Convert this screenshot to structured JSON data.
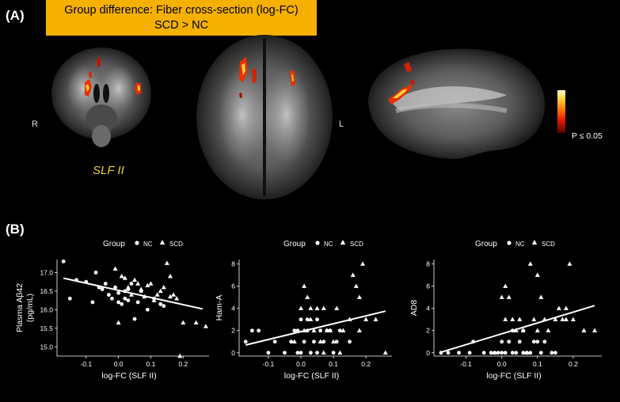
{
  "panel_a": {
    "label": "(A)",
    "title_line1": "Group difference: Fiber cross-section (log-FC)",
    "title_line2": "SCD > NC",
    "left_side": "R",
    "right_side": "L",
    "tract": "SLF II",
    "colorbar_label": "P ≤ 0.05"
  },
  "panel_b": {
    "label": "(B)",
    "legend_title": "Group",
    "legend_nc": "NC",
    "legend_scd": "SCD"
  },
  "chart_data": [
    {
      "type": "scatter",
      "xlabel": "log-FC (SLF II)",
      "ylabel": "Plasma Aβ42\n(pg/mL)",
      "xlim": [
        -0.19,
        0.28
      ],
      "ylim": [
        14.75,
        17.35
      ],
      "xticks": [
        -0.1,
        0.0,
        0.1,
        0.2
      ],
      "xtick_labels": [
        "-0.1",
        "0.0",
        "0.1",
        "0.2"
      ],
      "yticks": [
        15.0,
        15.5,
        16.0,
        16.5,
        17.0
      ],
      "ytick_labels": [
        "15.0",
        "15.5",
        "16.0",
        "16.5",
        "17.0"
      ],
      "fit": [
        [
          -0.17,
          16.85
        ],
        [
          0.26,
          16.02
        ]
      ],
      "series": [
        {
          "name": "NC",
          "marker": "circle",
          "points": [
            [
              -0.17,
              17.3
            ],
            [
              -0.15,
              16.3
            ],
            [
              -0.13,
              16.8
            ],
            [
              -0.1,
              16.75
            ],
            [
              -0.08,
              16.2
            ],
            [
              -0.07,
              17.0
            ],
            [
              -0.05,
              16.55
            ],
            [
              -0.04,
              16.7
            ],
            [
              -0.03,
              16.4
            ],
            [
              -0.02,
              16.3
            ],
            [
              -0.01,
              16.6
            ],
            [
              0.0,
              16.2
            ],
            [
              0.0,
              16.45
            ],
            [
              0.01,
              16.15
            ],
            [
              0.02,
              16.5
            ],
            [
              0.02,
              16.3
            ],
            [
              0.03,
              16.25
            ],
            [
              0.04,
              16.7
            ],
            [
              0.05,
              15.75
            ],
            [
              0.06,
              16.2
            ],
            [
              0.07,
              16.5
            ],
            [
              0.09,
              16.0
            ],
            [
              0.11,
              16.3
            ],
            [
              0.13,
              16.15
            ],
            [
              0.14,
              16.1
            ],
            [
              0.03,
              16.55
            ],
            [
              -0.06,
              16.6
            ]
          ]
        },
        {
          "name": "SCD",
          "marker": "triangle",
          "points": [
            [
              -0.01,
              17.1
            ],
            [
              0.0,
              15.65
            ],
            [
              0.01,
              16.9
            ],
            [
              0.02,
              16.85
            ],
            [
              0.03,
              16.6
            ],
            [
              0.04,
              16.4
            ],
            [
              0.05,
              16.8
            ],
            [
              0.06,
              16.7
            ],
            [
              0.07,
              16.55
            ],
            [
              0.08,
              16.35
            ],
            [
              0.09,
              16.65
            ],
            [
              0.1,
              16.7
            ],
            [
              0.11,
              16.25
            ],
            [
              0.12,
              16.4
            ],
            [
              0.13,
              16.5
            ],
            [
              0.15,
              17.25
            ],
            [
              0.16,
              16.35
            ],
            [
              0.17,
              16.4
            ],
            [
              0.18,
              16.3
            ],
            [
              0.19,
              14.75
            ],
            [
              0.2,
              15.65
            ],
            [
              0.24,
              15.65
            ],
            [
              0.27,
              15.55
            ],
            [
              0.16,
              16.9
            ],
            [
              0.14,
              16.6
            ]
          ]
        }
      ]
    },
    {
      "type": "scatter",
      "xlabel": "log-FC (SLF II)",
      "ylabel": "Ham-A",
      "xlim": [
        -0.19,
        0.28
      ],
      "ylim": [
        -0.3,
        8.4
      ],
      "xticks": [
        -0.1,
        0.0,
        0.1,
        0.2
      ],
      "xtick_labels": [
        "-0.1",
        "0.0",
        "0.1",
        "0.2"
      ],
      "yticks": [
        0,
        2,
        4,
        6,
        8
      ],
      "ytick_labels": [
        "0",
        "2",
        "4",
        "6",
        "8"
      ],
      "fit": [
        [
          -0.17,
          0.7
        ],
        [
          0.26,
          3.75
        ]
      ],
      "series": [
        {
          "name": "NC",
          "marker": "circle",
          "points": [
            [
              -0.17,
              1
            ],
            [
              -0.15,
              2
            ],
            [
              -0.13,
              2
            ],
            [
              -0.1,
              0
            ],
            [
              -0.08,
              1
            ],
            [
              -0.05,
              0
            ],
            [
              -0.03,
              1
            ],
            [
              -0.02,
              2
            ],
            [
              -0.01,
              0
            ],
            [
              -0.01,
              2
            ],
            [
              0.0,
              0
            ],
            [
              0.0,
              3
            ],
            [
              0.01,
              1
            ],
            [
              0.02,
              3
            ],
            [
              0.02,
              2
            ],
            [
              0.03,
              0
            ],
            [
              0.04,
              1
            ],
            [
              0.05,
              0
            ],
            [
              0.06,
              2
            ],
            [
              0.07,
              1
            ],
            [
              0.08,
              2
            ],
            [
              0.1,
              0
            ],
            [
              0.11,
              1
            ],
            [
              0.12,
              2
            ],
            [
              0.15,
              1
            ],
            [
              0.05,
              3
            ],
            [
              0.09,
              2
            ]
          ]
        },
        {
          "name": "SCD",
          "marker": "triangle",
          "points": [
            [
              -0.02,
              1
            ],
            [
              0.0,
              4
            ],
            [
              0.01,
              6
            ],
            [
              0.01,
              2
            ],
            [
              0.02,
              5
            ],
            [
              0.03,
              3
            ],
            [
              0.04,
              2
            ],
            [
              0.05,
              4
            ],
            [
              0.06,
              1
            ],
            [
              0.07,
              0
            ],
            [
              0.08,
              2
            ],
            [
              0.09,
              2
            ],
            [
              0.1,
              1
            ],
            [
              0.11,
              4
            ],
            [
              0.12,
              0
            ],
            [
              0.13,
              2
            ],
            [
              0.15,
              3
            ],
            [
              0.16,
              7
            ],
            [
              0.17,
              6
            ],
            [
              0.18,
              5
            ],
            [
              0.18,
              2
            ],
            [
              0.19,
              8
            ],
            [
              0.2,
              3
            ],
            [
              0.23,
              3
            ],
            [
              0.26,
              0
            ],
            [
              0.03,
              4
            ],
            [
              0.07,
              4
            ]
          ]
        }
      ]
    },
    {
      "type": "scatter",
      "xlabel": "log-FC (SLF II)",
      "ylabel": "AD8",
      "xlim": [
        -0.19,
        0.28
      ],
      "ylim": [
        -0.3,
        8.4
      ],
      "xticks": [
        -0.1,
        0.0,
        0.1,
        0.2
      ],
      "xtick_labels": [
        "-0.1",
        "0.0",
        "0.1",
        "0.2"
      ],
      "yticks": [
        0,
        2,
        4,
        6,
        8
      ],
      "ytick_labels": [
        "0",
        "2",
        "4",
        "6",
        "8"
      ],
      "fit": [
        [
          -0.17,
          0.05
        ],
        [
          0.26,
          4.25
        ]
      ],
      "series": [
        {
          "name": "NC",
          "marker": "circle",
          "points": [
            [
              -0.17,
              0
            ],
            [
              -0.15,
              0
            ],
            [
              -0.12,
              0
            ],
            [
              -0.09,
              0
            ],
            [
              -0.08,
              1
            ],
            [
              -0.05,
              0
            ],
            [
              -0.03,
              0
            ],
            [
              -0.02,
              0
            ],
            [
              -0.01,
              0
            ],
            [
              0.0,
              0
            ],
            [
              0.01,
              0
            ],
            [
              0.02,
              1
            ],
            [
              0.03,
              0
            ],
            [
              0.03,
              2
            ],
            [
              0.04,
              0
            ],
            [
              0.05,
              1
            ],
            [
              0.06,
              0
            ],
            [
              0.07,
              0
            ],
            [
              0.08,
              0
            ],
            [
              0.1,
              1
            ],
            [
              0.11,
              0
            ],
            [
              0.12,
              1
            ],
            [
              0.14,
              0
            ],
            [
              0.15,
              0
            ],
            [
              0.06,
              2
            ],
            [
              0.0,
              1
            ],
            [
              0.09,
              1
            ]
          ]
        },
        {
          "name": "SCD",
          "marker": "triangle",
          "points": [
            [
              -0.02,
              0
            ],
            [
              0.0,
              5
            ],
            [
              0.01,
              6
            ],
            [
              0.01,
              3
            ],
            [
              0.02,
              5
            ],
            [
              0.03,
              3
            ],
            [
              0.04,
              2
            ],
            [
              0.05,
              3
            ],
            [
              0.06,
              2
            ],
            [
              0.07,
              0
            ],
            [
              0.08,
              8
            ],
            [
              0.09,
              3
            ],
            [
              0.1,
              7
            ],
            [
              0.11,
              5
            ],
            [
              0.12,
              3
            ],
            [
              0.13,
              2
            ],
            [
              0.15,
              3
            ],
            [
              0.16,
              4
            ],
            [
              0.17,
              3
            ],
            [
              0.18,
              4
            ],
            [
              0.18,
              3
            ],
            [
              0.19,
              8
            ],
            [
              0.2,
              3
            ],
            [
              0.23,
              2
            ],
            [
              0.26,
              2
            ],
            [
              0.04,
              2
            ],
            [
              0.1,
              2
            ]
          ]
        }
      ]
    }
  ]
}
